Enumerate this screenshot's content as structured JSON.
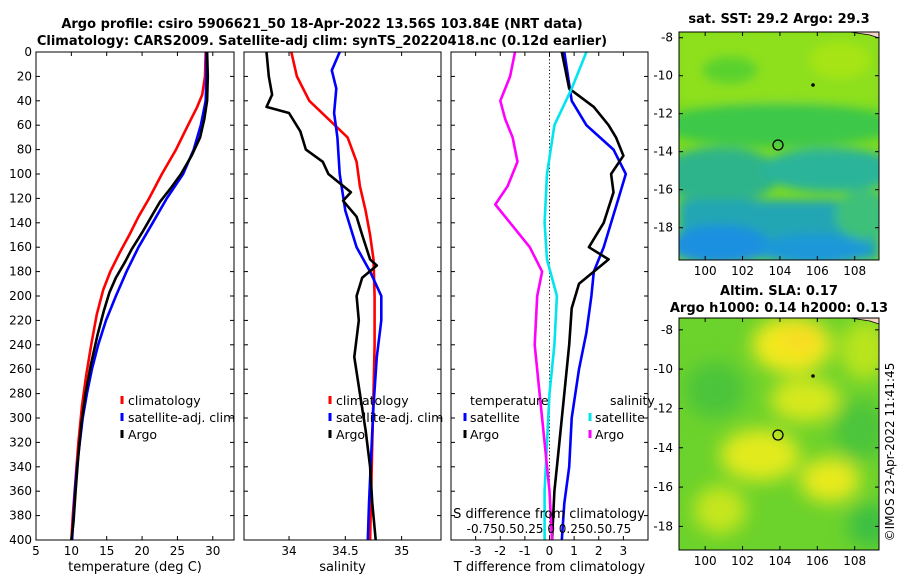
{
  "header": {
    "line1": "Argo profile: csiro 5906621_50 18-Apr-2022 13.56S 103.84E (NRT data)",
    "line2": "Climatology: CARS2009. Satellite-adj clim: synTS_20220418.nc (0.12d earlier)"
  },
  "sst_map": {
    "title": "sat. SST: 29.2 Argo: 29.3"
  },
  "sla_map": {
    "title1": "Altim. SLA: 0.17",
    "title2": "Argo h1000: 0.14 h2000: 0.13"
  },
  "credit": "©IMOS 23-Apr-2022 11:41:45",
  "colors": {
    "climatology": "#ff0000",
    "satellite": "#0000ff",
    "argo": "#000000",
    "sal_satellite": "#00e5ee",
    "sal_argo": "#ff00ff"
  },
  "chart_data": [
    {
      "type": "line",
      "xlabel": "temperature (deg C)",
      "ylabel": "",
      "xlim": [
        5,
        33
      ],
      "ylim": [
        0,
        400
      ],
      "xticks": [
        "5",
        "10",
        "15",
        "20",
        "25",
        "30"
      ],
      "xtick_values": [
        5,
        10,
        15,
        20,
        25,
        30
      ],
      "yticks": [
        "0",
        "20",
        "40",
        "60",
        "80",
        "100",
        "120",
        "140",
        "160",
        "180",
        "200",
        "220",
        "240",
        "260",
        "280",
        "300",
        "320",
        "340",
        "360",
        "380",
        "400"
      ],
      "ytick_values": [
        0,
        20,
        40,
        60,
        80,
        100,
        120,
        140,
        160,
        180,
        200,
        220,
        240,
        260,
        280,
        300,
        320,
        340,
        360,
        380,
        400
      ],
      "legend": [
        "climatology",
        "satellite-adj. clim",
        "Argo"
      ],
      "series": [
        {
          "name": "climatology",
          "color": "#ff0000",
          "points": [
            [
              29,
              0
            ],
            [
              28.9,
              20
            ],
            [
              28.5,
              35
            ],
            [
              27.8,
              45
            ],
            [
              26.5,
              60
            ],
            [
              24.8,
              80
            ],
            [
              22.8,
              100
            ],
            [
              21,
              120
            ],
            [
              19.5,
              135
            ],
            [
              18.2,
              150
            ],
            [
              16.8,
              165
            ],
            [
              15.5,
              180
            ],
            [
              14.5,
              195
            ],
            [
              13.6,
              215
            ],
            [
              12.8,
              240
            ],
            [
              12.1,
              265
            ],
            [
              11.5,
              290
            ],
            [
              11,
              320
            ],
            [
              10.6,
              350
            ],
            [
              10.2,
              380
            ],
            [
              10,
              400
            ]
          ]
        },
        {
          "name": "satellite-adj. clim",
          "color": "#0000ff",
          "points": [
            [
              29.1,
              0
            ],
            [
              29.1,
              20
            ],
            [
              29,
              40
            ],
            [
              28.3,
              60
            ],
            [
              27.3,
              80
            ],
            [
              25.8,
              100
            ],
            [
              23.5,
              120
            ],
            [
              21.5,
              140
            ],
            [
              19.5,
              160
            ],
            [
              17.8,
              180
            ],
            [
              16.3,
              200
            ],
            [
              14.9,
              220
            ],
            [
              13.8,
              240
            ],
            [
              12.9,
              260
            ],
            [
              12.2,
              280
            ],
            [
              11.6,
              300
            ],
            [
              11.2,
              320
            ],
            [
              10.8,
              340
            ],
            [
              10.5,
              360
            ],
            [
              10.3,
              380
            ],
            [
              10.1,
              400
            ]
          ]
        },
        {
          "name": "Argo",
          "color": "#000000",
          "points": [
            [
              29.2,
              0
            ],
            [
              29.3,
              20
            ],
            [
              29.2,
              40
            ],
            [
              28.8,
              55
            ],
            [
              28.2,
              70
            ],
            [
              27,
              85
            ],
            [
              25.5,
              100
            ],
            [
              24,
              112
            ],
            [
              22.5,
              123
            ],
            [
              21.3,
              135
            ],
            [
              20,
              148
            ],
            [
              18.5,
              162
            ],
            [
              17.6,
              172
            ],
            [
              16.3,
              185
            ],
            [
              15.4,
              197
            ],
            [
              14.6,
              212
            ],
            [
              13.7,
              232
            ],
            [
              12.8,
              255
            ],
            [
              12,
              280
            ],
            [
              11.4,
              305
            ],
            [
              11,
              330
            ],
            [
              10.6,
              360
            ],
            [
              10.3,
              385
            ],
            [
              10,
              400
            ]
          ]
        }
      ]
    },
    {
      "type": "line",
      "xlabel": "salinity",
      "ylabel": "",
      "xlim": [
        33.6,
        35.35
      ],
      "ylim": [
        0,
        400
      ],
      "xticks": [
        "34",
        "34.5",
        "35"
      ],
      "xtick_values": [
        34,
        34.5,
        35
      ],
      "legend": [
        "climatology",
        "satellite-adj. clim",
        "Argo"
      ],
      "series": [
        {
          "name": "climatology",
          "color": "#ff0000",
          "points": [
            [
              34.02,
              0
            ],
            [
              34.07,
              20
            ],
            [
              34.18,
              40
            ],
            [
              34.35,
              55
            ],
            [
              34.52,
              70
            ],
            [
              34.6,
              90
            ],
            [
              34.63,
              110
            ],
            [
              34.68,
              130
            ],
            [
              34.72,
              150
            ],
            [
              34.75,
              170
            ],
            [
              34.76,
              200
            ],
            [
              34.76,
              240
            ],
            [
              34.75,
              280
            ],
            [
              34.74,
              320
            ],
            [
              34.73,
              360
            ],
            [
              34.72,
              400
            ]
          ]
        },
        {
          "name": "satellite-adj. clim",
          "color": "#0000ff",
          "points": [
            [
              34.45,
              0
            ],
            [
              34.38,
              15
            ],
            [
              34.42,
              30
            ],
            [
              34.4,
              50
            ],
            [
              34.43,
              70
            ],
            [
              34.45,
              100
            ],
            [
              34.5,
              130
            ],
            [
              34.6,
              160
            ],
            [
              34.72,
              180
            ],
            [
              34.82,
              200
            ],
            [
              34.82,
              220
            ],
            [
              34.78,
              250
            ],
            [
              34.75,
              290
            ],
            [
              34.73,
              330
            ],
            [
              34.71,
              370
            ],
            [
              34.7,
              400
            ]
          ]
        },
        {
          "name": "Argo",
          "color": "#000000",
          "points": [
            [
              33.8,
              0
            ],
            [
              33.82,
              20
            ],
            [
              33.85,
              35
            ],
            [
              33.8,
              45
            ],
            [
              34,
              50
            ],
            [
              34.1,
              65
            ],
            [
              34.15,
              80
            ],
            [
              34.3,
              90
            ],
            [
              34.35,
              100
            ],
            [
              34.55,
              115
            ],
            [
              34.48,
              122
            ],
            [
              34.6,
              135
            ],
            [
              34.65,
              150
            ],
            [
              34.72,
              170
            ],
            [
              34.78,
              175
            ],
            [
              34.65,
              185
            ],
            [
              34.6,
              200
            ],
            [
              34.62,
              220
            ],
            [
              34.58,
              250
            ],
            [
              34.63,
              280
            ],
            [
              34.68,
              310
            ],
            [
              34.72,
              340
            ],
            [
              34.74,
              370
            ],
            [
              34.77,
              400
            ]
          ]
        }
      ]
    },
    {
      "type": "line",
      "xlabel": "T difference from climatology",
      "xlabel2": "S difference from climatology",
      "xlim": [
        -4,
        4
      ],
      "ylim": [
        0,
        400
      ],
      "xticks": [
        "-3",
        "-2",
        "-1",
        "0",
        "1",
        "2",
        "3"
      ],
      "xtick_values": [
        -3,
        -2,
        -1,
        0,
        1,
        2,
        3
      ],
      "x2ticks": "-0.750.50.25  0  0.250.50.75",
      "legend_left_title": "temperature",
      "legend_right_title": "salinity",
      "legend_left": [
        "satellite",
        "Argo"
      ],
      "legend_right": [
        "satellite",
        "Argo"
      ],
      "series": [
        {
          "name": "T satellite",
          "color": "#0000ff",
          "points": [
            [
              0.6,
              0
            ],
            [
              0.9,
              40
            ],
            [
              1.5,
              60
            ],
            [
              2.6,
              80
            ],
            [
              3.1,
              100
            ],
            [
              2.8,
              120
            ],
            [
              2.5,
              140
            ],
            [
              2.2,
              160
            ],
            [
              1.8,
              180
            ],
            [
              1.7,
              200
            ],
            [
              1.5,
              230
            ],
            [
              1.2,
              260
            ],
            [
              0.9,
              300
            ],
            [
              0.8,
              340
            ],
            [
              0.6,
              370
            ],
            [
              0.5,
              400
            ]
          ]
        },
        {
          "name": "T Argo",
          "color": "#000000",
          "points": [
            [
              0.5,
              0
            ],
            [
              0.8,
              30
            ],
            [
              1.8,
              45
            ],
            [
              2.4,
              60
            ],
            [
              2.7,
              70
            ],
            [
              3,
              85
            ],
            [
              2.5,
              100
            ],
            [
              2.6,
              115
            ],
            [
              2.2,
              140
            ],
            [
              1.6,
              160
            ],
            [
              2.4,
              170
            ],
            [
              1.8,
              180
            ],
            [
              1.2,
              190
            ],
            [
              0.9,
              210
            ],
            [
              0.8,
              240
            ],
            [
              0.6,
              280
            ],
            [
              0.4,
              320
            ],
            [
              0.2,
              360
            ],
            [
              0.1,
              400
            ]
          ]
        },
        {
          "name": "S satellite",
          "color": "#00e5ee",
          "points": [
            [
              1.5,
              0
            ],
            [
              0.9,
              30
            ],
            [
              0.2,
              60
            ],
            [
              -0.1,
              100
            ],
            [
              -0.2,
              140
            ],
            [
              -0.1,
              170
            ],
            [
              0.3,
              200
            ],
            [
              0.2,
              240
            ],
            [
              0,
              280
            ],
            [
              -0.1,
              320
            ],
            [
              -0.2,
              360
            ],
            [
              -0.2,
              400
            ]
          ]
        },
        {
          "name": "S Argo",
          "color": "#ff00ff",
          "points": [
            [
              -1.4,
              0
            ],
            [
              -1.6,
              20
            ],
            [
              -2,
              40
            ],
            [
              -1.8,
              55
            ],
            [
              -1.5,
              70
            ],
            [
              -1.3,
              90
            ],
            [
              -1.7,
              110
            ],
            [
              -2.2,
              125
            ],
            [
              -1.6,
              140
            ],
            [
              -0.8,
              160
            ],
            [
              -0.3,
              180
            ],
            [
              -0.5,
              200
            ],
            [
              -0.6,
              240
            ],
            [
              -0.4,
              280
            ],
            [
              -0.2,
              320
            ],
            [
              0,
              360
            ],
            [
              0.1,
              400
            ]
          ]
        }
      ]
    },
    {
      "type": "heatmap",
      "title": "sat. SST: 29.2 Argo: 29.3",
      "xticks": [
        "100",
        "102",
        "104",
        "106",
        "108"
      ],
      "xtick_values": [
        100,
        102,
        104,
        106,
        108
      ],
      "yticks": [
        "-8",
        "-10",
        "-12",
        "-14",
        "-16",
        "-18"
      ],
      "ytick_values": [
        -8,
        -10,
        -12,
        -14,
        -16,
        -18
      ],
      "xlim": [
        98.6,
        109.3
      ],
      "ylim": [
        -19.7,
        -7.7
      ],
      "argo_position": [
        103.84,
        -13.56
      ]
    },
    {
      "type": "heatmap",
      "title": "Altim. SLA: 0.17",
      "subtitle": "Argo h1000: 0.14 h2000: 0.13",
      "xticks": [
        "100",
        "102",
        "104",
        "106",
        "108"
      ],
      "xtick_values": [
        100,
        102,
        104,
        106,
        108
      ],
      "yticks": [
        "-8",
        "-10",
        "-12",
        "-14",
        "-16",
        "-18"
      ],
      "ytick_values": [
        -8,
        -10,
        -12,
        -14,
        -16,
        -18
      ],
      "xlim": [
        98.6,
        109.3
      ],
      "ylim": [
        -19.2,
        -7.4
      ],
      "argo_position": [
        103.84,
        -13.56
      ]
    }
  ]
}
